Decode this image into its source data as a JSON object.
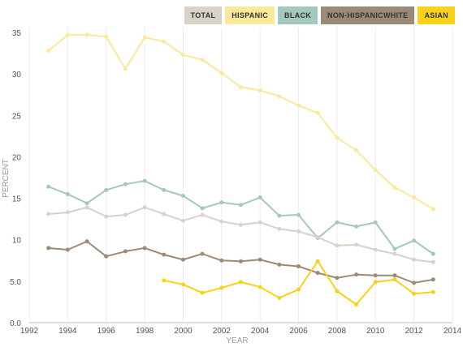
{
  "legend": {
    "items": [
      {
        "label": "TOTAL",
        "color": "#d8d2c8"
      },
      {
        "label": "HISPANIC",
        "color": "#fbe99a"
      },
      {
        "label": "BLACK",
        "color": "#a3c8bd"
      },
      {
        "label": "NON-HISPANICWHITE",
        "color": "#9c8a76"
      },
      {
        "label": "ASIAN",
        "color": "#f8d21a"
      }
    ]
  },
  "chart_data": {
    "type": "line",
    "xlabel": "YEAR",
    "ylabel": "PERCENT",
    "xlim": [
      1992,
      2014
    ],
    "ylim": [
      0,
      35
    ],
    "x_ticks": [
      1992,
      1994,
      1996,
      1998,
      2000,
      2002,
      2004,
      2006,
      2008,
      2010,
      2012,
      2014
    ],
    "x_tick_labels": [
      "1992",
      "1994",
      "1996",
      "1998",
      "2000",
      "2002",
      "2004",
      "2006",
      "2008",
      "2010",
      "2012",
      "2014"
    ],
    "y_ticks": [
      0,
      5,
      10,
      15,
      20,
      25,
      30,
      35
    ],
    "y_tick_labels": [
      "0.0",
      "5.0",
      "10",
      "15",
      "20",
      "25",
      "30",
      "35"
    ],
    "grid": "vertical",
    "legend_position": "top-right",
    "series": [
      {
        "name": "HISPANIC",
        "color": "#fbe99a",
        "x": [
          1993,
          1994,
          1995,
          1996,
          1997,
          1998,
          1999,
          2000,
          2001,
          2002,
          2003,
          2004,
          2005,
          2006,
          2007,
          2008,
          2009,
          2010,
          2011,
          2012,
          2013
        ],
        "values": [
          32.8,
          34.7,
          34.7,
          34.5,
          30.6,
          34.4,
          33.9,
          32.3,
          31.7,
          30.1,
          28.4,
          28.0,
          27.3,
          26.2,
          25.3,
          22.3,
          20.8,
          18.4,
          16.3,
          15.1,
          13.7
        ]
      },
      {
        "name": "BLACK",
        "color": "#a3c8bd",
        "x": [
          1993,
          1994,
          1995,
          1996,
          1997,
          1998,
          1999,
          2000,
          2001,
          2002,
          2003,
          2004,
          2005,
          2006,
          2007,
          2008,
          2009,
          2010,
          2011,
          2012,
          2013
        ],
        "values": [
          16.4,
          15.5,
          14.4,
          16.0,
          16.7,
          17.1,
          16.0,
          15.3,
          13.8,
          14.5,
          14.2,
          15.1,
          12.9,
          13.0,
          10.2,
          12.1,
          11.6,
          12.1,
          8.9,
          9.9,
          8.3
        ]
      },
      {
        "name": "TOTAL",
        "color": "#d8d2c8",
        "x": [
          1993,
          1994,
          1995,
          1996,
          1997,
          1998,
          1999,
          2000,
          2001,
          2002,
          2003,
          2004,
          2005,
          2006,
          2007,
          2008,
          2009,
          2010,
          2011,
          2012,
          2013
        ],
        "values": [
          13.1,
          13.3,
          13.9,
          12.8,
          13.0,
          13.9,
          13.1,
          12.3,
          13.0,
          12.2,
          11.8,
          12.1,
          11.3,
          11.0,
          10.3,
          9.3,
          9.4,
          8.8,
          8.3,
          7.6,
          7.3
        ]
      },
      {
        "name": "NON-HISPANICWHITE",
        "color": "#9c8a76",
        "x": [
          1993,
          1994,
          1995,
          1996,
          1997,
          1998,
          1999,
          2000,
          2001,
          2002,
          2003,
          2004,
          2005,
          2006,
          2007,
          2008,
          2009,
          2010,
          2011,
          2012,
          2013
        ],
        "values": [
          9.0,
          8.8,
          9.8,
          8.0,
          8.6,
          9.0,
          8.2,
          7.6,
          8.3,
          7.5,
          7.4,
          7.6,
          7.0,
          6.8,
          6.0,
          5.4,
          5.8,
          5.7,
          5.7,
          4.8,
          5.2
        ]
      },
      {
        "name": "ASIAN",
        "color": "#f8d21a",
        "x": [
          1999,
          2000,
          2001,
          2002,
          2003,
          2004,
          2005,
          2006,
          2007,
          2008,
          2009,
          2010,
          2011,
          2012,
          2013
        ],
        "values": [
          5.1,
          4.6,
          3.6,
          4.2,
          4.9,
          4.3,
          3.0,
          4.0,
          7.4,
          3.8,
          2.2,
          4.9,
          5.2,
          3.5,
          3.7
        ]
      }
    ]
  }
}
